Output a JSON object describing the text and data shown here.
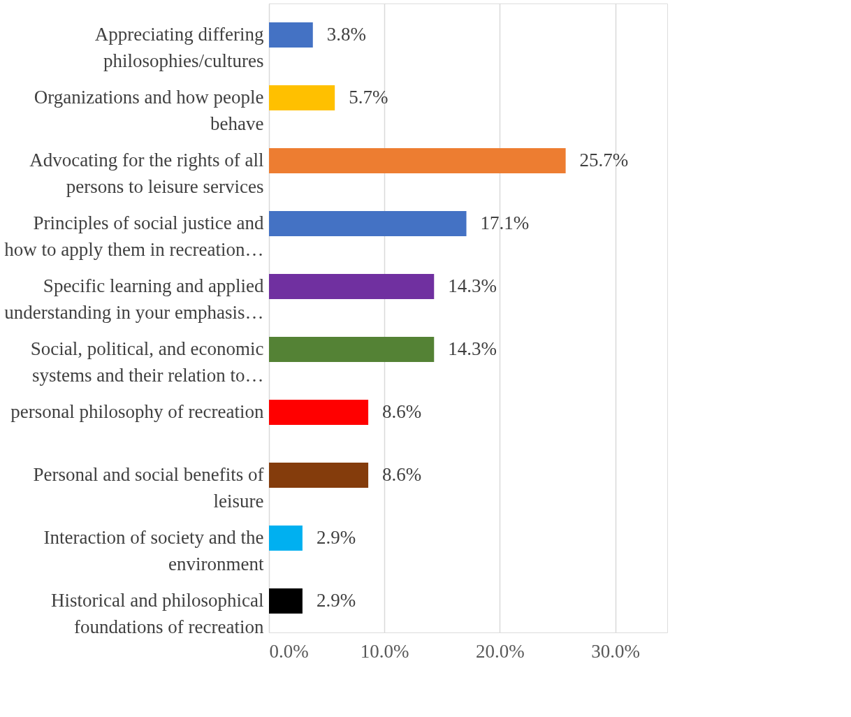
{
  "chart_data": {
    "type": "bar",
    "orientation": "horizontal",
    "categories": [
      "Appreciating differing philosophies/cultures",
      "Organizations and how people behave",
      "Advocating for the rights of all persons to leisure services",
      "Principles of social justice and how to apply them in recreation…",
      "Specific learning and applied understanding in your emphasis…",
      "Social, political, and economic systems and their relation to…",
      "personal philosophy of recreation",
      "Personal and social benefits of leisure",
      "Interaction of society and the environment",
      "Historical and philosophical foundations of recreation"
    ],
    "values": [
      3.8,
      5.7,
      25.7,
      17.1,
      14.3,
      14.3,
      8.6,
      8.6,
      2.9,
      2.9
    ],
    "value_labels": [
      "3.8%",
      "5.7%",
      "25.7%",
      "17.1%",
      "14.3%",
      "14.3%",
      "8.6%",
      "8.6%",
      "2.9%",
      "2.9%"
    ],
    "colors": [
      "#4472c4",
      "#ffc000",
      "#ed7d31",
      "#4472c4",
      "#7030a0",
      "#548235",
      "#ff0000",
      "#843c0c",
      "#00b0f0",
      "#000000"
    ],
    "xlim": [
      0,
      34.5
    ],
    "xticks": [
      {
        "value": 0,
        "label": "0.0%"
      },
      {
        "value": 10,
        "label": "10.0%"
      },
      {
        "value": 20,
        "label": "20.0%"
      },
      {
        "value": 30,
        "label": "30.0%"
      }
    ],
    "grid": "x"
  }
}
